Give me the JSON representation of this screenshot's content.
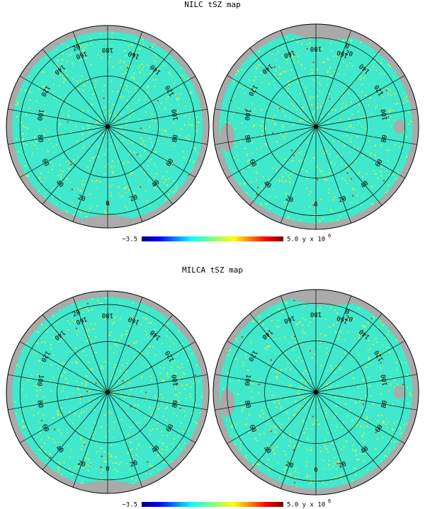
{
  "panels": [
    {
      "title": "NILC tSZ map",
      "maps": [
        {
          "meridian_labels": [
            "0",
            "20",
            "40",
            "60",
            "80",
            "100",
            "120",
            "140",
            "160",
            "180",
            "160",
            "140",
            "120",
            "100",
            "80",
            "60",
            "40",
            "20"
          ],
          "lat_labels": [
            "20"
          ]
        },
        {
          "meridian_labels": [
            "0",
            "20",
            "40",
            "60",
            "80",
            "100",
            "120",
            "140",
            "160",
            "180",
            "160",
            "140",
            "120",
            "100",
            "80",
            "60",
            "40",
            "20"
          ],
          "lat_labels": [
            "0",
            "-20"
          ]
        }
      ],
      "colorbar": {
        "min_label": "−3.5",
        "max_label": "5.0 y x 10",
        "exponent": "6"
      }
    },
    {
      "title": "MILCA tSZ map",
      "maps": [
        {
          "meridian_labels": [
            "0",
            "20",
            "40",
            "60",
            "80",
            "100",
            "120",
            "140",
            "160",
            "180",
            "160",
            "140",
            "120",
            "100",
            "80",
            "60",
            "40",
            "20"
          ],
          "lat_labels": [
            "20"
          ]
        },
        {
          "meridian_labels": [
            "0",
            "20",
            "40",
            "60",
            "80",
            "100",
            "120",
            "140",
            "160",
            "180",
            "160",
            "140",
            "120",
            "100",
            "80",
            "60",
            "40",
            "20"
          ],
          "lat_labels": [
            "0",
            "-20"
          ]
        }
      ],
      "colorbar": {
        "min_label": "−3.5",
        "max_label": "5.0 y x 10",
        "exponent": "6"
      }
    }
  ]
}
